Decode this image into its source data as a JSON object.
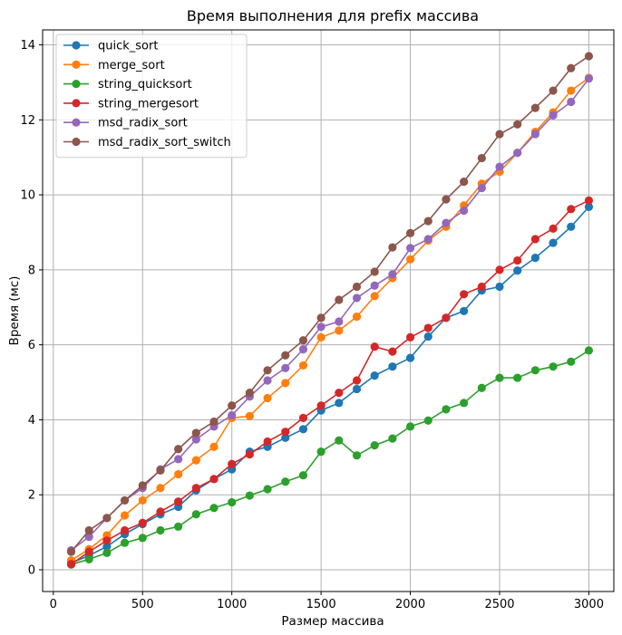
{
  "chart_data": {
    "type": "line",
    "title": "Время выполнения для prefix массива",
    "xlabel": "Размер массива",
    "ylabel": "Время (мс)",
    "xlim": [
      -60,
      3140
    ],
    "ylim": [
      -0.58,
      14.4
    ],
    "xticks": [
      0,
      500,
      1000,
      1500,
      2000,
      2500,
      3000
    ],
    "yticks": [
      0,
      2,
      4,
      6,
      8,
      10,
      12,
      14
    ],
    "grid": true,
    "legend_position": "top-left",
    "x": [
      100,
      200,
      300,
      400,
      500,
      600,
      700,
      800,
      900,
      1000,
      1100,
      1200,
      1300,
      1400,
      1500,
      1600,
      1700,
      1800,
      1900,
      2000,
      2100,
      2200,
      2300,
      2400,
      2500,
      2600,
      2700,
      2800,
      2900,
      3000
    ],
    "series": [
      {
        "name": "quick_sort",
        "color": "#1f77b4",
        "values": [
          0.18,
          0.38,
          0.62,
          0.95,
          1.22,
          1.48,
          1.68,
          2.12,
          2.42,
          2.68,
          3.15,
          3.28,
          3.52,
          3.75,
          4.25,
          4.45,
          4.82,
          5.18,
          5.42,
          5.65,
          6.22,
          6.72,
          6.9,
          7.45,
          7.55,
          7.98,
          8.32,
          8.72,
          9.15,
          9.68
        ]
      },
      {
        "name": "merge_sort",
        "color": "#ff7f0e",
        "values": [
          0.25,
          0.55,
          0.92,
          1.45,
          1.85,
          2.18,
          2.55,
          2.92,
          3.28,
          4.05,
          4.1,
          4.58,
          4.98,
          5.45,
          6.2,
          6.38,
          6.75,
          7.3,
          7.78,
          8.28,
          8.78,
          9.15,
          9.72,
          10.3,
          10.62,
          11.12,
          11.68,
          12.2,
          12.78,
          13.12
        ]
      },
      {
        "name": "string_quicksort",
        "color": "#2ca02c",
        "values": [
          0.14,
          0.28,
          0.45,
          0.72,
          0.85,
          1.05,
          1.15,
          1.48,
          1.65,
          1.8,
          1.98,
          2.15,
          2.35,
          2.52,
          3.15,
          3.45,
          3.05,
          3.32,
          3.5,
          3.82,
          3.98,
          4.28,
          4.45,
          4.85,
          5.12,
          5.12,
          5.32,
          5.42,
          5.55,
          5.85
        ]
      },
      {
        "name": "string_mergesort",
        "color": "#d62728",
        "values": [
          0.15,
          0.48,
          0.78,
          1.05,
          1.25,
          1.55,
          1.82,
          2.18,
          2.42,
          2.82,
          3.08,
          3.42,
          3.68,
          4.05,
          4.38,
          4.72,
          5.05,
          5.95,
          5.82,
          6.2,
          6.45,
          6.72,
          7.35,
          7.55,
          8.0,
          8.25,
          8.82,
          9.1,
          9.62,
          9.85
        ]
      },
      {
        "name": "msd_radix_sort",
        "color": "#9467bd",
        "values": [
          0.52,
          0.88,
          1.38,
          1.85,
          2.18,
          2.68,
          2.95,
          3.48,
          3.82,
          4.12,
          4.62,
          5.05,
          5.38,
          5.88,
          6.48,
          6.62,
          7.25,
          7.58,
          7.88,
          8.58,
          8.82,
          9.25,
          9.58,
          10.18,
          10.75,
          11.12,
          11.62,
          12.12,
          12.48,
          13.1
        ]
      },
      {
        "name": "msd_radix_sort_switch",
        "color": "#8c564b",
        "values": [
          0.48,
          1.05,
          1.38,
          1.85,
          2.25,
          2.65,
          3.22,
          3.65,
          3.95,
          4.38,
          4.72,
          5.32,
          5.72,
          6.12,
          6.72,
          7.2,
          7.55,
          7.95,
          8.6,
          8.98,
          9.3,
          9.88,
          10.35,
          10.98,
          11.62,
          11.88,
          12.32,
          12.78,
          13.38,
          13.7
        ]
      }
    ]
  }
}
